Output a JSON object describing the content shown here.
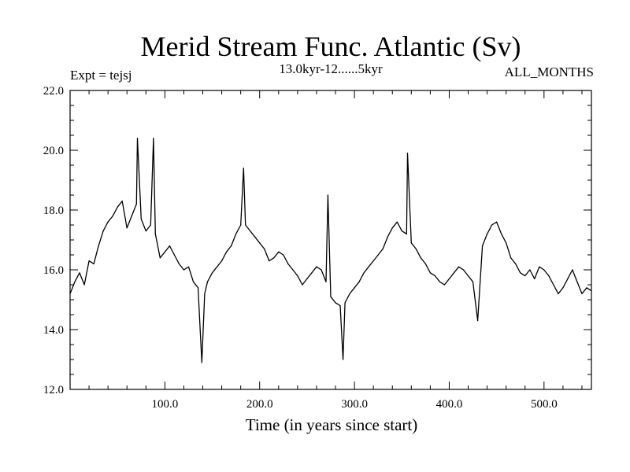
{
  "chart_data": {
    "type": "line",
    "title": "Merid Stream Func. Atlantic (Sv)",
    "subtitle": "13.0kyr-12......5kyr",
    "left_annotation": "Expt = tejsj",
    "right_annotation": "ALL_MONTHS",
    "xlabel": "Time (in years since start)",
    "ylabel": "",
    "xlim": [
      0,
      550
    ],
    "ylim": [
      12.0,
      22.0
    ],
    "x_ticks": [
      100,
      200,
      300,
      400,
      500
    ],
    "x_tick_labels": [
      "100.0",
      "200.0",
      "300.0",
      "400.0",
      "500.0"
    ],
    "y_ticks": [
      12,
      14,
      16,
      18,
      20,
      22
    ],
    "y_tick_labels": [
      "12.0",
      "14.0",
      "16.0",
      "18.0",
      "20.0",
      "22.0"
    ],
    "grid": false,
    "series": [
      {
        "name": "Merid Stream Func. Atlantic",
        "x": [
          0,
          5,
          10,
          15,
          20,
          25,
          30,
          35,
          40,
          45,
          50,
          55,
          60,
          65,
          70,
          71,
          75,
          80,
          85,
          88,
          90,
          95,
          100,
          105,
          110,
          115,
          120,
          125,
          130,
          135,
          139,
          142,
          145,
          150,
          155,
          160,
          165,
          170,
          175,
          180,
          183,
          185,
          190,
          195,
          200,
          205,
          210,
          215,
          220,
          225,
          230,
          235,
          240,
          245,
          250,
          255,
          260,
          265,
          270,
          272,
          275,
          280,
          285,
          288,
          290,
          295,
          300,
          305,
          310,
          315,
          320,
          325,
          330,
          335,
          340,
          345,
          350,
          355,
          356,
          360,
          365,
          370,
          375,
          380,
          385,
          390,
          395,
          400,
          405,
          410,
          415,
          420,
          425,
          430,
          435,
          440,
          445,
          450,
          455,
          460,
          465,
          470,
          475,
          480,
          485,
          490,
          495,
          500,
          505,
          510,
          515,
          520,
          525,
          530,
          535,
          540,
          545,
          550
        ],
        "values": [
          15.2,
          15.6,
          15.9,
          15.5,
          16.3,
          16.2,
          16.8,
          17.3,
          17.6,
          17.8,
          18.1,
          18.3,
          17.4,
          17.8,
          18.2,
          20.4,
          17.7,
          17.3,
          17.5,
          20.4,
          17.2,
          16.4,
          16.6,
          16.8,
          16.5,
          16.2,
          16.0,
          16.1,
          15.6,
          15.4,
          12.9,
          15.2,
          15.6,
          15.9,
          16.1,
          16.3,
          16.6,
          16.8,
          17.2,
          17.5,
          19.4,
          17.5,
          17.3,
          17.1,
          16.9,
          16.7,
          16.3,
          16.4,
          16.6,
          16.5,
          16.2,
          16.0,
          15.8,
          15.5,
          15.7,
          15.9,
          16.1,
          16.0,
          15.6,
          18.5,
          15.1,
          14.9,
          14.8,
          13.0,
          14.9,
          15.2,
          15.4,
          15.6,
          15.9,
          16.1,
          16.3,
          16.5,
          16.7,
          17.1,
          17.4,
          17.6,
          17.3,
          17.2,
          19.9,
          16.9,
          16.7,
          16.4,
          16.2,
          15.9,
          15.8,
          15.6,
          15.5,
          15.7,
          15.9,
          16.1,
          16.0,
          15.8,
          15.6,
          14.3,
          16.8,
          17.2,
          17.5,
          17.6,
          17.2,
          16.9,
          16.4,
          16.2,
          15.9,
          15.8,
          16.0,
          15.7,
          16.1,
          16.0,
          15.8,
          15.5,
          15.2,
          15.4,
          15.7,
          16.0,
          15.6,
          15.2,
          15.4,
          15.3
        ]
      }
    ]
  }
}
